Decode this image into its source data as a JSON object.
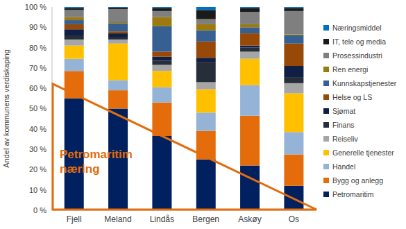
{
  "chart_data": {
    "type": "bar",
    "stacked": true,
    "categories": [
      "Fjell",
      "Meland",
      "Lindås",
      "Bergen",
      "Askøy",
      "Os"
    ],
    "y_label": "Andel av kommunens verdiskaping",
    "ylim": [
      0,
      100
    ],
    "yticks": [
      {
        "value": 0,
        "label": "0 %"
      },
      {
        "value": 10,
        "label": "10 %"
      },
      {
        "value": 20,
        "label": "20 %"
      },
      {
        "value": 30,
        "label": "30 %"
      },
      {
        "value": 40,
        "label": "40 %"
      },
      {
        "value": 50,
        "label": "50 %"
      },
      {
        "value": 60,
        "label": "60 %"
      },
      {
        "value": 70,
        "label": "70 %"
      },
      {
        "value": 80,
        "label": "80 %"
      },
      {
        "value": 90,
        "label": "90 %"
      },
      {
        "value": 100,
        "label": "100 %"
      }
    ],
    "grid": false,
    "legend": "right",
    "annotations": [
      {
        "text": "Petromaritim næring"
      }
    ],
    "series": [
      {
        "name": "Petromaritim",
        "color": "#002060",
        "values": [
          55,
          50,
          36.5,
          25,
          22,
          12
        ]
      },
      {
        "name": "Bygg og anlegg",
        "color": "#E46C0A",
        "values": [
          13.5,
          9,
          16.5,
          14,
          24.5,
          15.5
        ]
      },
      {
        "name": "Handel",
        "color": "#95B3D7",
        "values": [
          6,
          5,
          7.5,
          9,
          15,
          11
        ]
      },
      {
        "name": "Generelle tjenester",
        "color": "#FFC000",
        "values": [
          6.5,
          18,
          8,
          11.5,
          13,
          19
        ]
      },
      {
        "name": "Reiseliv",
        "color": "#A6A6A6",
        "values": [
          3,
          2,
          3,
          3.5,
          3.5,
          5
        ]
      },
      {
        "name": "Finans",
        "color": "#262E3A",
        "values": [
          2,
          1,
          2,
          10,
          2,
          3
        ]
      },
      {
        "name": "Sjømat",
        "color": "#0F1F45",
        "values": [
          3,
          2,
          2,
          2,
          1,
          5.5
        ]
      },
      {
        "name": "Helse og LS",
        "color": "#984807",
        "values": [
          2.5,
          1,
          2.5,
          8,
          6,
          11
        ]
      },
      {
        "name": "Kunnskapstjenester",
        "color": "#366092",
        "values": [
          2,
          4,
          12.5,
          5.5,
          3,
          4
        ]
      },
      {
        "name": "Ren energi",
        "color": "#9C7A0E",
        "values": [
          1.5,
          0.5,
          4.5,
          3,
          1.5,
          0.5
        ]
      },
      {
        "name": "Prosessindustri",
        "color": "#7F7F7F",
        "values": [
          3.5,
          6.5,
          3,
          2.5,
          6,
          11.5
        ]
      },
      {
        "name": "IT, tele og media",
        "color": "#1A1A1A",
        "values": [
          1,
          0.7,
          1.5,
          4.5,
          2,
          1.5
        ]
      },
      {
        "name": "Næringsmiddel",
        "color": "#0070C0",
        "values": [
          0.5,
          0.3,
          0.5,
          1.5,
          0.5,
          0.5
        ]
      }
    ]
  }
}
